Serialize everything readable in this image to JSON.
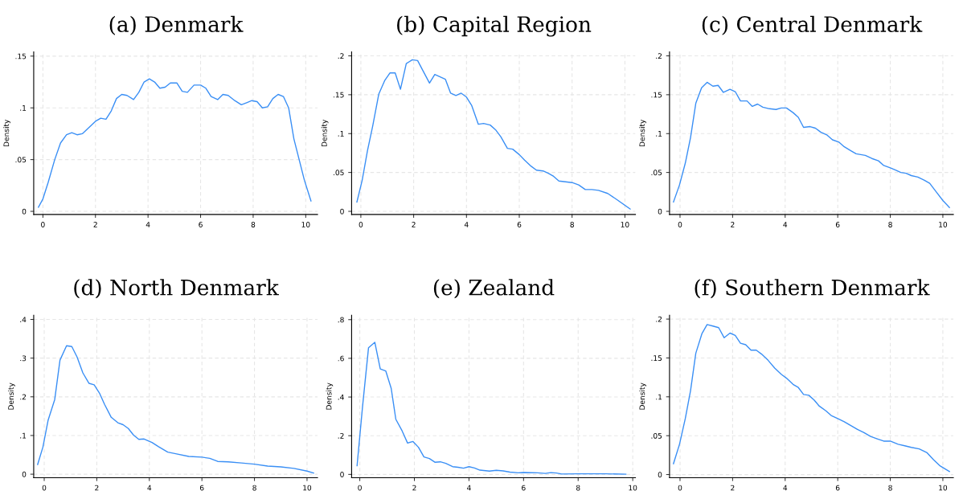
{
  "chart_data": [
    {
      "type": "line",
      "title": "(a) Denmark",
      "ylabel": "Density",
      "grid": true,
      "xlim": [
        -0.35,
        10.45
      ],
      "ylim": [
        -0.003,
        0.154
      ],
      "xticks": [
        0,
        2,
        4,
        6,
        8,
        10
      ],
      "yticks": [
        {
          "value": 0,
          "label": "0"
        },
        {
          "value": 0.05,
          "label": ".05"
        },
        {
          "value": 0.1,
          "label": ".1"
        },
        {
          "value": 0.15,
          "label": ".15"
        }
      ],
      "series": [
        {
          "color": "#3a8ff5",
          "x": [
            -0.17,
            0,
            0.2,
            0.45,
            0.67,
            0.9,
            1.1,
            1.3,
            1.5,
            1.75,
            2.0,
            2.2,
            2.4,
            2.6,
            2.8,
            3.0,
            3.2,
            3.45,
            3.65,
            3.85,
            4.05,
            4.25,
            4.45,
            4.65,
            4.85,
            5.1,
            5.3,
            5.5,
            5.75,
            6.0,
            6.2,
            6.4,
            6.65,
            6.85,
            7.05,
            7.3,
            7.55,
            7.75,
            7.95,
            8.15,
            8.35,
            8.55,
            8.75,
            8.95,
            9.15,
            9.35,
            9.55,
            9.75,
            9.95,
            10.2
          ],
          "values": [
            0.004,
            0.012,
            0.028,
            0.05,
            0.066,
            0.074,
            0.076,
            0.074,
            0.075,
            0.081,
            0.087,
            0.09,
            0.089,
            0.097,
            0.109,
            0.113,
            0.112,
            0.108,
            0.115,
            0.125,
            0.128,
            0.125,
            0.119,
            0.12,
            0.124,
            0.124,
            0.116,
            0.115,
            0.122,
            0.122,
            0.119,
            0.111,
            0.108,
            0.113,
            0.112,
            0.107,
            0.103,
            0.105,
            0.107,
            0.106,
            0.1,
            0.101,
            0.109,
            0.113,
            0.111,
            0.1,
            0.07,
            0.05,
            0.03,
            0.01
          ]
        }
      ]
    },
    {
      "type": "line",
      "title": "(b) Capital Region",
      "ylabel": "Density",
      "grid": true,
      "xlim": [
        -0.35,
        10.4
      ],
      "ylim": [
        -0.004,
        0.205
      ],
      "xticks": [
        0,
        2,
        4,
        6,
        8,
        10
      ],
      "yticks": [
        {
          "value": 0,
          "label": "0"
        },
        {
          "value": 0.05,
          "label": ".05"
        },
        {
          "value": 0.1,
          "label": ".1"
        },
        {
          "value": 0.15,
          "label": ".15"
        },
        {
          "value": 0.2,
          "label": ".2"
        }
      ],
      "series": [
        {
          "color": "#3a8ff5",
          "x": [
            -0.15,
            0.05,
            0.25,
            0.45,
            0.68,
            0.9,
            1.1,
            1.3,
            1.5,
            1.72,
            1.95,
            2.15,
            2.35,
            2.6,
            2.8,
            3.0,
            3.2,
            3.4,
            3.6,
            3.8,
            4.0,
            4.2,
            4.45,
            4.65,
            4.9,
            5.1,
            5.3,
            5.55,
            5.75,
            6.0,
            6.2,
            6.45,
            6.65,
            6.9,
            7.1,
            7.3,
            7.5,
            7.75,
            8.0,
            8.25,
            8.5,
            8.75,
            9.0,
            9.35,
            9.7,
            10.2
          ],
          "values": [
            0.012,
            0.04,
            0.078,
            0.11,
            0.151,
            0.168,
            0.178,
            0.178,
            0.157,
            0.19,
            0.195,
            0.194,
            0.181,
            0.165,
            0.176,
            0.173,
            0.17,
            0.152,
            0.149,
            0.152,
            0.147,
            0.136,
            0.112,
            0.113,
            0.111,
            0.105,
            0.096,
            0.081,
            0.08,
            0.073,
            0.066,
            0.058,
            0.053,
            0.052,
            0.049,
            0.045,
            0.039,
            0.038,
            0.037,
            0.034,
            0.028,
            0.028,
            0.027,
            0.023,
            0.015,
            0.003
          ]
        }
      ]
    },
    {
      "type": "line",
      "title": "(c) Central Denmark",
      "ylabel": "Density",
      "grid": true,
      "xlim": [
        -0.4,
        10.4
      ],
      "ylim": [
        -0.004,
        0.205
      ],
      "xticks": [
        0,
        2,
        4,
        6,
        8,
        10
      ],
      "yticks": [
        {
          "value": 0,
          "label": "0"
        },
        {
          "value": 0.05,
          "label": ".05"
        },
        {
          "value": 0.1,
          "label": ".1"
        },
        {
          "value": 0.15,
          "label": ".15"
        },
        {
          "value": 0.2,
          "label": ".2"
        }
      ],
      "series": [
        {
          "color": "#3a8ff5",
          "x": [
            -0.25,
            -0.02,
            0.2,
            0.4,
            0.6,
            0.82,
            1.03,
            1.25,
            1.45,
            1.65,
            1.9,
            2.1,
            2.3,
            2.55,
            2.75,
            2.95,
            3.15,
            3.4,
            3.65,
            3.85,
            4.05,
            4.3,
            4.5,
            4.7,
            4.95,
            5.15,
            5.35,
            5.6,
            5.8,
            6.05,
            6.25,
            6.5,
            6.7,
            7.05,
            7.3,
            7.55,
            7.75,
            8.0,
            8.2,
            8.4,
            8.6,
            8.8,
            9.05,
            9.3,
            9.5,
            9.75,
            10.0,
            10.25
          ],
          "values": [
            0.012,
            0.034,
            0.062,
            0.095,
            0.139,
            0.159,
            0.166,
            0.161,
            0.162,
            0.153,
            0.157,
            0.154,
            0.142,
            0.142,
            0.135,
            0.138,
            0.134,
            0.132,
            0.131,
            0.133,
            0.133,
            0.127,
            0.121,
            0.108,
            0.109,
            0.107,
            0.102,
            0.098,
            0.092,
            0.089,
            0.083,
            0.078,
            0.074,
            0.072,
            0.068,
            0.065,
            0.059,
            0.056,
            0.053,
            0.05,
            0.049,
            0.046,
            0.044,
            0.04,
            0.036,
            0.025,
            0.014,
            0.005
          ]
        }
      ]
    },
    {
      "type": "line",
      "title": "(d) North Denmark",
      "ylabel": "Density",
      "grid": true,
      "xlim": [
        -0.4,
        10.4
      ],
      "ylim": [
        -0.009,
        0.411
      ],
      "xticks": [
        0,
        2,
        4,
        6,
        8,
        10
      ],
      "yticks": [
        {
          "value": 0,
          "label": "0"
        },
        {
          "value": 0.1,
          "label": ".1"
        },
        {
          "value": 0.2,
          "label": ".2"
        },
        {
          "value": 0.3,
          "label": ".3"
        },
        {
          "value": 0.4,
          "label": ".4"
        }
      ],
      "series": [
        {
          "color": "#3a8ff5",
          "x": [
            -0.25,
            -0.05,
            0.15,
            0.4,
            0.6,
            0.85,
            1.05,
            1.25,
            1.47,
            1.7,
            1.9,
            2.1,
            2.3,
            2.55,
            2.8,
            3.0,
            3.2,
            3.4,
            3.6,
            3.8,
            4.1,
            4.35,
            4.7,
            5.0,
            5.5,
            6.0,
            6.3,
            6.6,
            7.0,
            7.5,
            8.0,
            8.5,
            9.0,
            9.5,
            10.0,
            10.25
          ],
          "values": [
            0.025,
            0.07,
            0.14,
            0.193,
            0.295,
            0.332,
            0.33,
            0.303,
            0.262,
            0.235,
            0.231,
            0.21,
            0.18,
            0.147,
            0.133,
            0.128,
            0.118,
            0.101,
            0.09,
            0.091,
            0.082,
            0.071,
            0.057,
            0.053,
            0.046,
            0.044,
            0.041,
            0.033,
            0.032,
            0.029,
            0.026,
            0.021,
            0.019,
            0.015,
            0.008,
            0.003
          ]
        }
      ]
    },
    {
      "type": "line",
      "title": "(e) Zealand",
      "ylabel": "Density",
      "grid": true,
      "xlim": [
        -0.3,
        10.1
      ],
      "ylim": [
        -0.017,
        0.823
      ],
      "xticks": [
        0,
        2,
        4,
        6,
        8,
        10
      ],
      "yticks": [
        {
          "value": 0,
          "label": "0"
        },
        {
          "value": 0.2,
          "label": ".2"
        },
        {
          "value": 0.4,
          "label": ".4"
        },
        {
          "value": 0.6,
          "label": ".6"
        },
        {
          "value": 0.8,
          "label": ".8"
        }
      ],
      "series": [
        {
          "color": "#3a8ff5",
          "x": [
            -0.1,
            0.1,
            0.32,
            0.55,
            0.75,
            0.95,
            1.15,
            1.32,
            1.55,
            1.75,
            1.95,
            2.15,
            2.35,
            2.55,
            2.75,
            2.95,
            3.15,
            3.4,
            3.6,
            3.8,
            4.0,
            4.2,
            4.4,
            4.75,
            5.0,
            5.25,
            5.5,
            5.8,
            6.0,
            6.5,
            6.8,
            7.0,
            7.2,
            7.4,
            8.0,
            9.0,
            9.75
          ],
          "values": [
            0.045,
            0.35,
            0.655,
            0.683,
            0.545,
            0.535,
            0.445,
            0.285,
            0.225,
            0.162,
            0.17,
            0.14,
            0.09,
            0.082,
            0.063,
            0.065,
            0.057,
            0.04,
            0.037,
            0.032,
            0.04,
            0.033,
            0.022,
            0.017,
            0.021,
            0.018,
            0.012,
            0.008,
            0.01,
            0.008,
            0.005,
            0.009,
            0.007,
            0.002,
            0.003,
            0.003,
            0.001
          ]
        }
      ]
    },
    {
      "type": "line",
      "title": "(f) Southern Denmark",
      "ylabel": "Density",
      "grid": true,
      "xlim": [
        -0.4,
        10.4
      ],
      "ylim": [
        -0.004,
        0.205
      ],
      "xticks": [
        0,
        2,
        4,
        6,
        8,
        10
      ],
      "yticks": [
        {
          "value": 0,
          "label": "0"
        },
        {
          "value": 0.05,
          "label": ".05"
        },
        {
          "value": 0.1,
          "label": ".1"
        },
        {
          "value": 0.15,
          "label": ".15"
        },
        {
          "value": 0.2,
          "label": ".2"
        }
      ],
      "series": [
        {
          "color": "#3a8ff5",
          "x": [
            -0.25,
            -0.02,
            0.2,
            0.4,
            0.6,
            0.83,
            1.03,
            1.25,
            1.47,
            1.68,
            1.9,
            2.1,
            2.3,
            2.5,
            2.7,
            2.9,
            3.1,
            3.35,
            3.6,
            3.85,
            4.05,
            4.3,
            4.5,
            4.7,
            4.9,
            5.1,
            5.3,
            5.55,
            5.75,
            6.0,
            6.25,
            6.5,
            6.75,
            7.0,
            7.25,
            7.5,
            7.75,
            8.0,
            8.3,
            8.55,
            8.8,
            9.1,
            9.4,
            9.65,
            9.9,
            10.25
          ],
          "values": [
            0.014,
            0.039,
            0.072,
            0.108,
            0.156,
            0.181,
            0.193,
            0.191,
            0.189,
            0.176,
            0.182,
            0.179,
            0.169,
            0.167,
            0.16,
            0.16,
            0.155,
            0.147,
            0.137,
            0.129,
            0.124,
            0.116,
            0.112,
            0.103,
            0.102,
            0.096,
            0.088,
            0.082,
            0.076,
            0.072,
            0.068,
            0.063,
            0.058,
            0.054,
            0.049,
            0.046,
            0.043,
            0.043,
            0.039,
            0.037,
            0.035,
            0.033,
            0.028,
            0.019,
            0.011,
            0.004
          ]
        }
      ]
    }
  ]
}
